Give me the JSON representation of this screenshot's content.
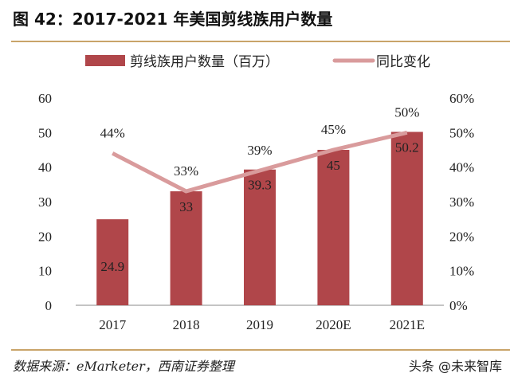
{
  "title": "图 42：2017-2021 年美国剪线族用户数量",
  "source": "数据来源：eMarketer，西南证券整理",
  "watermark": "头条 @未来智库",
  "colors": {
    "bar": "#b0464a",
    "line": "#d99b9c",
    "rule": "#c9a469"
  },
  "chart_data": {
    "type": "bar+line",
    "categories": [
      "2017",
      "2018",
      "2019",
      "2020E",
      "2021E"
    ],
    "series": [
      {
        "name": "剪线族用户数量（百万）",
        "type": "bar",
        "axis": "left",
        "values": [
          24.9,
          33,
          39.3,
          45,
          50.2
        ],
        "labels": [
          "24.9",
          "33",
          "39.3",
          "45",
          "50.2"
        ]
      },
      {
        "name": "同比变化",
        "type": "line",
        "axis": "right",
        "values": [
          44,
          33,
          39,
          45,
          50
        ],
        "labels": [
          "44%",
          "33%",
          "39%",
          "45%",
          "50%"
        ]
      }
    ],
    "left_axis": {
      "ylim": [
        0,
        60
      ],
      "ticks": [
        "0",
        "10",
        "20",
        "30",
        "40",
        "50",
        "60"
      ]
    },
    "right_axis": {
      "ylim": [
        0,
        60
      ],
      "ticks": [
        "0%",
        "10%",
        "20%",
        "30%",
        "40%",
        "50%",
        "60%"
      ]
    },
    "grid": false,
    "legend": "top"
  }
}
